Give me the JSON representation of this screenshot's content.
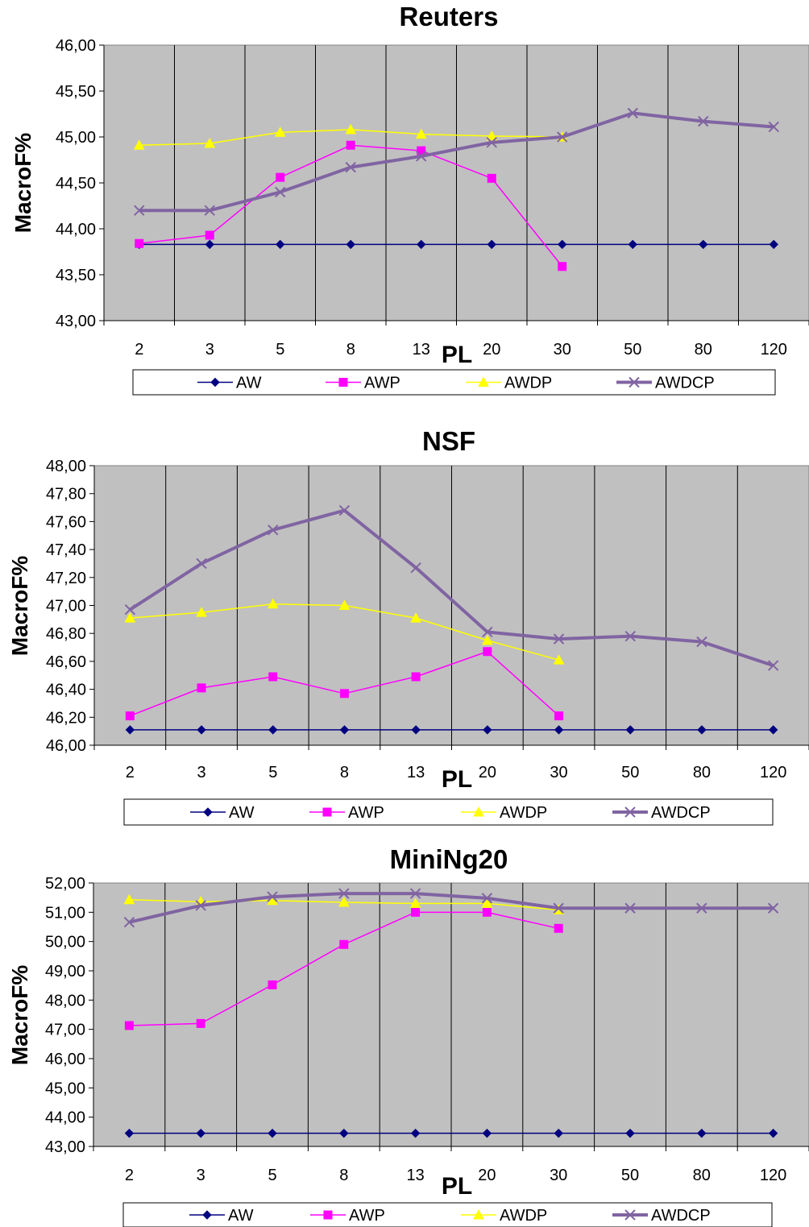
{
  "chart_data": [
    {
      "type": "line",
      "title": "Reuters",
      "xlabel": "PL",
      "ylabel": "MacroF%",
      "categories": [
        "2",
        "3",
        "5",
        "8",
        "13",
        "20",
        "30",
        "50",
        "80",
        "120"
      ],
      "ylim": [
        43.0,
        46.0
      ],
      "yticks": [
        "43,00",
        "43,50",
        "44,00",
        "44,50",
        "45,00",
        "45,50",
        "46,00"
      ],
      "grid": "vertical",
      "legend": "bottom",
      "series": [
        {
          "name": "AW",
          "color": "#000080",
          "marker": "diamond",
          "values": [
            43.83,
            43.83,
            43.83,
            43.83,
            43.83,
            43.83,
            43.83,
            43.83,
            43.83,
            43.83
          ]
        },
        {
          "name": "AWP",
          "color": "#ff00ff",
          "marker": "square",
          "values": [
            43.84,
            43.93,
            44.56,
            44.91,
            44.85,
            44.55,
            43.59,
            null,
            null,
            null
          ]
        },
        {
          "name": "AWDP",
          "color": "#ffff00",
          "marker": "triangle",
          "values": [
            44.91,
            44.93,
            45.05,
            45.08,
            45.03,
            45.01,
            45.0,
            null,
            null,
            null
          ]
        },
        {
          "name": "AWDCP",
          "color": "#8064a2",
          "marker": "x",
          "values": [
            44.2,
            44.2,
            44.4,
            44.67,
            44.79,
            44.94,
            45.0,
            45.26,
            45.17,
            45.11
          ]
        }
      ]
    },
    {
      "type": "line",
      "title": "NSF",
      "xlabel": "PL",
      "ylabel": "MacroF%",
      "categories": [
        "2",
        "3",
        "5",
        "8",
        "13",
        "20",
        "30",
        "50",
        "80",
        "120"
      ],
      "ylim": [
        46.0,
        48.0
      ],
      "yticks": [
        "46,00",
        "46,20",
        "46,40",
        "46,60",
        "46,80",
        "47,00",
        "47,20",
        "47,40",
        "47,60",
        "47,80",
        "48,00"
      ],
      "grid": "vertical",
      "legend": "bottom",
      "series": [
        {
          "name": "AW",
          "color": "#000080",
          "marker": "diamond",
          "values": [
            46.11,
            46.11,
            46.11,
            46.11,
            46.11,
            46.11,
            46.11,
            46.11,
            46.11,
            46.11
          ]
        },
        {
          "name": "AWP",
          "color": "#ff00ff",
          "marker": "square",
          "values": [
            46.21,
            46.41,
            46.49,
            46.37,
            46.49,
            46.67,
            46.21,
            null,
            null,
            null
          ]
        },
        {
          "name": "AWDP",
          "color": "#ffff00",
          "marker": "triangle",
          "values": [
            46.91,
            46.95,
            47.01,
            47.0,
            46.91,
            46.75,
            46.61,
            null,
            null,
            null
          ]
        },
        {
          "name": "AWDCP",
          "color": "#8064a2",
          "marker": "x",
          "values": [
            46.97,
            47.3,
            47.54,
            47.68,
            47.27,
            46.81,
            46.76,
            46.78,
            46.74,
            46.57
          ]
        }
      ]
    },
    {
      "type": "line",
      "title": "MiniNg20",
      "xlabel": "PL",
      "ylabel": "MacroF%",
      "categories": [
        "2",
        "3",
        "5",
        "8",
        "13",
        "20",
        "30",
        "50",
        "80",
        "120"
      ],
      "ylim": [
        43.0,
        52.0
      ],
      "yticks": [
        "43,00",
        "44,00",
        "45,00",
        "46,00",
        "47,00",
        "48,00",
        "49,00",
        "50,00",
        "51,00",
        "52,00"
      ],
      "grid": "vertical",
      "legend": "bottom",
      "series": [
        {
          "name": "AW",
          "color": "#000080",
          "marker": "diamond",
          "values": [
            43.45,
            43.45,
            43.45,
            43.45,
            43.45,
            43.45,
            43.45,
            43.45,
            43.45,
            43.45
          ]
        },
        {
          "name": "AWP",
          "color": "#ff00ff",
          "marker": "square",
          "values": [
            47.13,
            47.2,
            48.52,
            49.9,
            51.0,
            51.0,
            50.45,
            null,
            null,
            null
          ]
        },
        {
          "name": "AWDP",
          "color": "#ffff00",
          "marker": "triangle",
          "values": [
            51.43,
            51.36,
            51.4,
            51.34,
            51.3,
            51.3,
            51.08,
            null,
            null,
            null
          ]
        },
        {
          "name": "AWDCP",
          "color": "#8064a2",
          "marker": "x",
          "values": [
            50.66,
            51.23,
            51.53,
            51.64,
            51.64,
            51.48,
            51.14,
            51.14,
            51.14,
            51.14
          ]
        }
      ]
    }
  ]
}
